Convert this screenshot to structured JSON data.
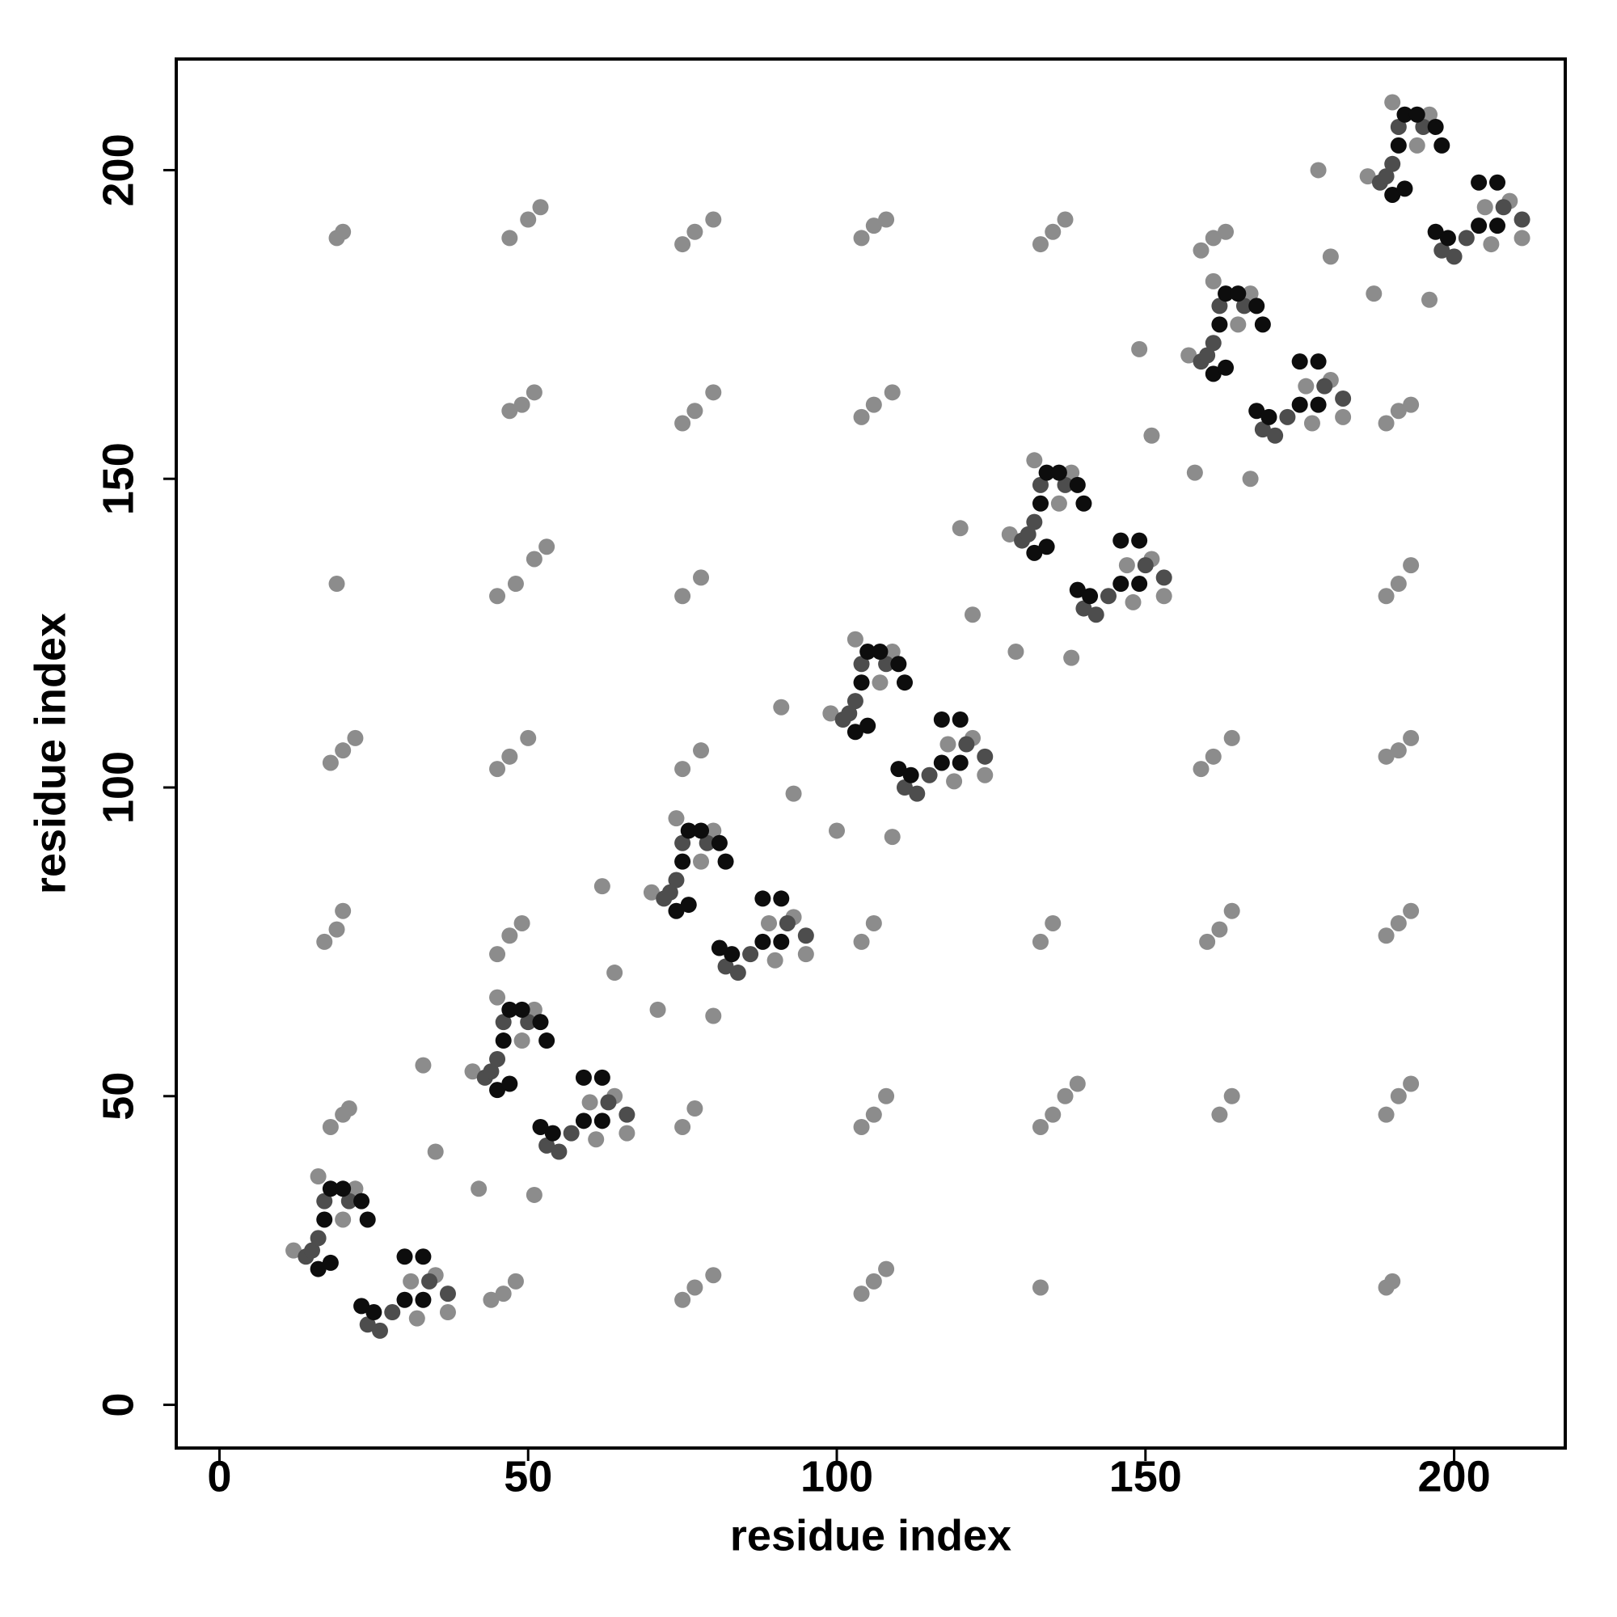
{
  "chart_data": {
    "type": "scatter",
    "xlabel": "residue index",
    "ylabel": "residue index",
    "xlim": [
      -7,
      218
    ],
    "ylim": [
      -7,
      218
    ],
    "xticks": [
      0,
      50,
      100,
      150,
      200
    ],
    "yticks": [
      0,
      50,
      100,
      150,
      200
    ],
    "grid": false,
    "series": [
      {
        "color": "#8c8c8c",
        "x": [
          44,
          46,
          48,
          75,
          77,
          80,
          104,
          106,
          108,
          133,
          189,
          190,
          18,
          20,
          21,
          75,
          77,
          104,
          106,
          108,
          133,
          135,
          137,
          139,
          162,
          164,
          189,
          191,
          193,
          17,
          19,
          20,
          45,
          47,
          49,
          104,
          106,
          133,
          135,
          160,
          162,
          164,
          189,
          191,
          193,
          18,
          20,
          22,
          45,
          47,
          50,
          75,
          78,
          159,
          161,
          164,
          189,
          191,
          193,
          19,
          45,
          48,
          51,
          53,
          75,
          78,
          189,
          191,
          193,
          47,
          49,
          51,
          75,
          77,
          80,
          104,
          106,
          109,
          189,
          191,
          193,
          19,
          20,
          47,
          50,
          52,
          75,
          77,
          80,
          104,
          106,
          108,
          133,
          135,
          137,
          159,
          161,
          163
        ],
        "y": [
          17,
          18,
          20,
          17,
          19,
          21,
          18,
          20,
          22,
          19,
          19,
          20,
          45,
          47,
          48,
          45,
          48,
          45,
          47,
          50,
          45,
          47,
          50,
          52,
          47,
          50,
          47,
          50,
          52,
          75,
          77,
          80,
          73,
          76,
          78,
          75,
          78,
          75,
          78,
          75,
          77,
          80,
          76,
          78,
          80,
          104,
          106,
          108,
          103,
          105,
          108,
          103,
          106,
          103,
          105,
          108,
          105,
          106,
          108,
          133,
          131,
          133,
          137,
          139,
          131,
          134,
          131,
          133,
          136,
          161,
          162,
          164,
          159,
          161,
          164,
          160,
          162,
          164,
          159,
          161,
          162,
          189,
          190,
          189,
          192,
          194,
          188,
          190,
          192,
          189,
          191,
          192,
          188,
          190,
          192,
          187,
          189,
          190
        ]
      },
      {
        "color": "#8c8c8c",
        "x": [
          12,
          16,
          20,
          22,
          31,
          35,
          37,
          32,
          41,
          45,
          49,
          51,
          60,
          64,
          66,
          61,
          70,
          74,
          78,
          80,
          89,
          93,
          95,
          90,
          99,
          103,
          107,
          109,
          118,
          122,
          124,
          119,
          128,
          132,
          136,
          138,
          147,
          151,
          153,
          148,
          157,
          161,
          165,
          167,
          176,
          180,
          182,
          177,
          186,
          190,
          194,
          196,
          205,
          209,
          211,
          206,
          33,
          35,
          42,
          51,
          62,
          64,
          71,
          80,
          91,
          93,
          100,
          109,
          120,
          122,
          129,
          138,
          149,
          151,
          158,
          167,
          178,
          180,
          187,
          196
        ],
        "y": [
          25,
          37,
          30,
          35,
          20,
          21,
          15,
          14,
          54,
          66,
          59,
          64,
          49,
          50,
          44,
          43,
          83,
          95,
          88,
          93,
          78,
          79,
          73,
          72,
          112,
          124,
          117,
          122,
          107,
          108,
          102,
          101,
          141,
          153,
          146,
          151,
          136,
          137,
          131,
          130,
          170,
          182,
          175,
          180,
          165,
          166,
          160,
          159,
          199,
          211,
          204,
          209,
          194,
          195,
          189,
          188,
          55,
          41,
          35,
          34,
          84,
          70,
          64,
          63,
          113,
          99,
          93,
          92,
          142,
          128,
          122,
          121,
          171,
          157,
          151,
          150,
          200,
          186,
          180,
          179
        ]
      },
      {
        "color": "#4d4d4d",
        "x": [
          14,
          15,
          16,
          17,
          21,
          24,
          26,
          28,
          34,
          37,
          43,
          44,
          45,
          46,
          50,
          53,
          55,
          57,
          63,
          66,
          72,
          73,
          74,
          75,
          79,
          82,
          84,
          86,
          92,
          95,
          101,
          102,
          103,
          104,
          108,
          111,
          113,
          115,
          121,
          124,
          130,
          131,
          132,
          133,
          137,
          140,
          142,
          144,
          150,
          153,
          159,
          160,
          161,
          162,
          166,
          169,
          171,
          173,
          179,
          182,
          188,
          189,
          190,
          191,
          195,
          198,
          200,
          202,
          208,
          211
        ],
        "y": [
          24,
          25,
          27,
          33,
          33,
          13,
          12,
          15,
          20,
          18,
          53,
          54,
          56,
          62,
          62,
          42,
          41,
          44,
          49,
          47,
          82,
          83,
          85,
          91,
          91,
          71,
          70,
          73,
          78,
          76,
          111,
          112,
          114,
          120,
          120,
          100,
          99,
          102,
          107,
          105,
          140,
          141,
          143,
          149,
          149,
          129,
          128,
          131,
          136,
          134,
          169,
          170,
          172,
          178,
          178,
          158,
          157,
          160,
          165,
          163,
          198,
          199,
          201,
          207,
          207,
          187,
          186,
          189,
          194,
          192
        ]
      },
      {
        "color": "#0d0d0d",
        "x": [
          16,
          18,
          17,
          18,
          20,
          23,
          24,
          23,
          25,
          30,
          33,
          30,
          33,
          45,
          47,
          46,
          47,
          49,
          52,
          53,
          52,
          54,
          59,
          62,
          59,
          62,
          74,
          76,
          75,
          76,
          78,
          81,
          82,
          81,
          83,
          88,
          91,
          88,
          91,
          103,
          105,
          104,
          105,
          107,
          110,
          111,
          110,
          112,
          117,
          120,
          117,
          120,
          132,
          134,
          133,
          134,
          136,
          139,
          140,
          139,
          141,
          146,
          149,
          146,
          149,
          161,
          163,
          162,
          163,
          165,
          168,
          169,
          168,
          170,
          175,
          178,
          175,
          178,
          190,
          192,
          191,
          192,
          194,
          197,
          198,
          197,
          199,
          204,
          207,
          204,
          207
        ],
        "y": [
          22,
          23,
          30,
          35,
          35,
          33,
          30,
          16,
          15,
          24,
          24,
          17,
          17,
          51,
          52,
          59,
          64,
          64,
          62,
          59,
          45,
          44,
          53,
          53,
          46,
          46,
          80,
          81,
          88,
          93,
          93,
          91,
          88,
          74,
          73,
          82,
          82,
          75,
          75,
          109,
          110,
          117,
          122,
          122,
          120,
          117,
          103,
          102,
          111,
          111,
          104,
          104,
          138,
          139,
          146,
          151,
          151,
          149,
          146,
          132,
          131,
          140,
          140,
          133,
          133,
          167,
          168,
          175,
          180,
          180,
          178,
          175,
          161,
          160,
          169,
          169,
          162,
          162,
          196,
          197,
          204,
          209,
          209,
          207,
          204,
          190,
          189,
          198,
          198,
          191,
          191
        ]
      }
    ]
  }
}
